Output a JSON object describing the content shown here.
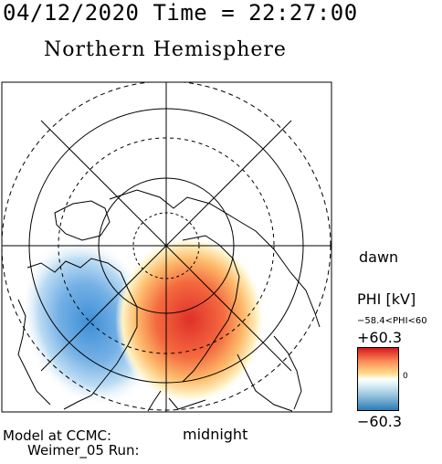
{
  "header": {
    "date_time": "04/12/2020 Time = 22:27:00",
    "title": "Northern Hemisphere"
  },
  "map": {
    "projection": "polar stereographic, north pole",
    "left_label": "",
    "right_label": "dawn",
    "bottom_label": "midnight",
    "grid_circles_latitude": [
      80,
      70,
      60,
      50
    ],
    "meridian_lines": 8
  },
  "colorbar": {
    "title": "PHI [kV]",
    "range_text": "−58.4<PHI<60",
    "max_label": "+60.3",
    "zero_label": "0",
    "min_label": "−60.3",
    "colors": {
      "max": "#d7191c",
      "mid": "#ffffff",
      "min": "#2c7bb6"
    }
  },
  "footer": {
    "line1": "Model at CCMC:",
    "line2": "Weimer_05 Run:"
  }
}
